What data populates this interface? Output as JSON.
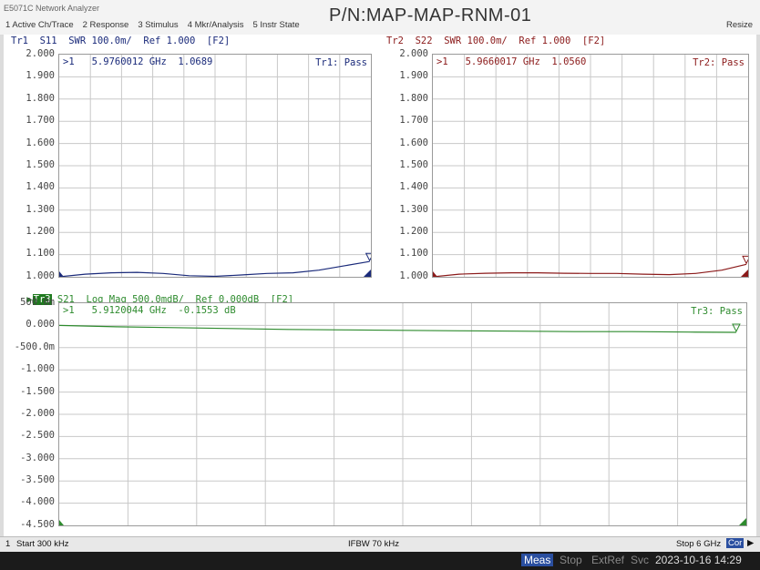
{
  "app": {
    "title": "E5071C Network Analyzer",
    "part_number": "P/N:MAP-MAP-RNM-01",
    "resize_label": "Resize"
  },
  "menu": [
    "1 Active Ch/Trace",
    "2 Response",
    "3 Stimulus",
    "4 Mkr/Analysis",
    "5 Instr State"
  ],
  "colors": {
    "tr1": "#1a2a7a",
    "tr2": "#8b1a1a",
    "tr3": "#2e8b2e",
    "grid": "#c8c8c8",
    "active_badge_bg": "#1f7a1f"
  },
  "traces": {
    "tr1": {
      "header": "Tr1  S11  SWR 100.0m/  Ref 1.000  [F2]",
      "marker": ">1   5.9760012 GHz  1.0689",
      "status": "Tr1: Pass",
      "y_ticks": [
        "2.000",
        "1.900",
        "1.800",
        "1.700",
        "1.600",
        "1.500",
        "1.400",
        "1.300",
        "1.200",
        "1.100",
        "1.000"
      ]
    },
    "tr2": {
      "header": "Tr2  S22  SWR 100.0m/  Ref 1.000  [F2]",
      "marker": ">1   5.9660017 GHz  1.0560",
      "status": "Tr2: Pass",
      "y_ticks": [
        "2.000",
        "1.900",
        "1.800",
        "1.700",
        "1.600",
        "1.500",
        "1.400",
        "1.300",
        "1.200",
        "1.100",
        "1.000"
      ]
    },
    "tr3": {
      "badge": "Tr3",
      "header": " S21  Log Mag 500.0mdB/  Ref 0.000dB  [F2]",
      "marker": ">1   5.9120044 GHz  -0.1553 dB",
      "status": "Tr3: Pass",
      "y_ticks": [
        "500.0m",
        "0.000",
        "-500.0m",
        "-1.000",
        "-1.500",
        "-2.000",
        "-2.500",
        "-3.000",
        "-3.500",
        "-4.000",
        "-4.500"
      ]
    }
  },
  "chart_data": [
    {
      "type": "line",
      "name": "Tr1 S11 SWR",
      "x_unit": "GHz",
      "xlim": [
        0.0003,
        6
      ],
      "ylim": [
        1.0,
        2.0
      ],
      "x": [
        0.0003,
        0.5,
        1.0,
        1.5,
        2.0,
        2.5,
        3.0,
        3.5,
        4.0,
        4.5,
        5.0,
        5.5,
        5.976
      ],
      "y": [
        1.0,
        1.012,
        1.018,
        1.02,
        1.015,
        1.005,
        1.002,
        1.008,
        1.015,
        1.018,
        1.03,
        1.05,
        1.0689
      ]
    },
    {
      "type": "line",
      "name": "Tr2 S22 SWR",
      "x_unit": "GHz",
      "xlim": [
        0.0003,
        6
      ],
      "ylim": [
        1.0,
        2.0
      ],
      "x": [
        0.0003,
        0.5,
        1.0,
        1.5,
        2.0,
        2.5,
        3.0,
        3.5,
        4.0,
        4.5,
        5.0,
        5.5,
        5.966
      ],
      "y": [
        1.0,
        1.012,
        1.016,
        1.018,
        1.018,
        1.016,
        1.015,
        1.015,
        1.012,
        1.01,
        1.015,
        1.03,
        1.056
      ]
    },
    {
      "type": "line",
      "name": "Tr3 S21 Log Mag",
      "x_unit": "GHz",
      "y_unit": "dB",
      "xlim": [
        0.0003,
        6
      ],
      "ylim": [
        -4.5,
        0.5
      ],
      "x": [
        0.0003,
        0.5,
        1.0,
        1.5,
        2.0,
        2.5,
        3.0,
        3.5,
        4.0,
        4.5,
        5.0,
        5.5,
        5.912
      ],
      "y": [
        0.0,
        -0.03,
        -0.05,
        -0.07,
        -0.09,
        -0.1,
        -0.11,
        -0.12,
        -0.13,
        -0.14,
        -0.14,
        -0.15,
        -0.1553
      ]
    }
  ],
  "status": {
    "channel": "1",
    "start": "Start 300 kHz",
    "ifbw": "IFBW 70 kHz",
    "stop": "Stop 6 GHz",
    "cor": "Cor"
  },
  "bottom": {
    "meas": "Meas",
    "stop": "Stop",
    "extref": "ExtRef",
    "svc": "Svc",
    "datetime": "2023-10-16 14:29"
  }
}
